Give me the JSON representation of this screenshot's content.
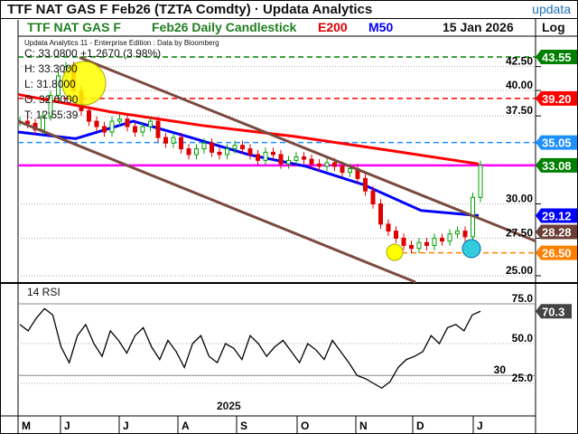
{
  "window": {
    "title": "TTF NAT GAS F     Feb26 (TZTA Comdty) · Updata Analytics",
    "brand": "updata"
  },
  "header": {
    "name": "TTF NAT GAS F",
    "desc": "Feb26 Daily Candlestick",
    "e200": "E200",
    "m50": "M50",
    "date": "15 Jan 2026",
    "scale": "Log"
  },
  "info": {
    "credit": "Updata Analytics 11 - Enterprise Edition : Data by Bloomberg",
    "c": "C: 33.0800  +1.2670 (3.98%)",
    "h": "H: 33.3000",
    "l": "L: 31.8000",
    "o": "O: 32.0000",
    "t": "T: 12:55:39"
  },
  "colors": {
    "up": "#00a000",
    "down": "#e00000",
    "e200": "#ff0000",
    "m50": "#0000ff",
    "channel": "#7b4a3f",
    "magenta": "#ff00ff"
  },
  "chart_data": [
    {
      "type": "candlestick",
      "title": "TTF NAT GAS F Feb26 Daily Candlestick",
      "scale": "log",
      "ylim": [
        24.5,
        45
      ],
      "yticks": [
        "25.00",
        "27.50",
        "30.00",
        "37.50",
        "40.00",
        "42.50"
      ],
      "xticks": [
        "M",
        "J",
        "J",
        "A",
        "S",
        "O",
        "N",
        "D",
        "J"
      ],
      "year_label": "2025",
      "closes": [
        37.0,
        36.8,
        36.2,
        37.5,
        39.5,
        41.5,
        42.5,
        40.0,
        38.0,
        37.0,
        36.5,
        36.0,
        37.0,
        37.2,
        36.5,
        36.0,
        36.5,
        37.0,
        35.5,
        35.0,
        35.5,
        34.5,
        34.0,
        34.5,
        35.0,
        34.2,
        34.0,
        34.5,
        34.8,
        34.5,
        34.0,
        33.5,
        34.2,
        34.0,
        33.2,
        33.5,
        33.8,
        33.6,
        33.2,
        33.0,
        33.3,
        33.0,
        32.5,
        32.8,
        32.0,
        31.0,
        30.0,
        28.5,
        28.0,
        27.5,
        27.0,
        26.8,
        27.2,
        27.0,
        27.5,
        27.3,
        27.8,
        28.0,
        27.6,
        30.5,
        33.08
      ],
      "e200": [
        39.6,
        37.9,
        36.6,
        35.6,
        34.4,
        33.2
      ],
      "m50": [
        36.0,
        35.4,
        37.0,
        35.5,
        34.0,
        33.0,
        31.5,
        29.5,
        29.12
      ],
      "levels": [
        {
          "label": "43.55",
          "value": 43.55,
          "color": "#008000"
        },
        {
          "label": "39.20",
          "value": 39.2,
          "color": "#ff0000"
        },
        {
          "label": "35.05",
          "value": 35.05,
          "color": "#1e90ff"
        },
        {
          "label": "33.08",
          "value": 33.08,
          "color": "#008000"
        },
        {
          "label": "29.12",
          "value": 29.12,
          "color": "#0000ff"
        },
        {
          "label": "28.28",
          "value": 28.28,
          "color": "#6b3f35"
        },
        {
          "label": "26.50",
          "value": 26.5,
          "color": "#ff8000"
        }
      ]
    },
    {
      "type": "line",
      "title": "14 RSI",
      "ylim": [
        15,
        85
      ],
      "yticks": [
        "75.0",
        "50.0",
        "30",
        "25.0"
      ],
      "last": "70.3",
      "values": [
        62,
        58,
        66,
        72,
        68,
        48,
        38,
        55,
        62,
        50,
        42,
        58,
        52,
        44,
        55,
        60,
        48,
        40,
        52,
        45,
        35,
        50,
        55,
        42,
        38,
        50,
        47,
        40,
        55,
        50,
        42,
        48,
        52,
        45,
        38,
        50,
        46,
        40,
        52,
        45,
        38,
        30,
        28,
        25,
        22,
        26,
        35,
        40,
        42,
        45,
        55,
        50,
        60,
        62,
        58,
        68,
        70.3
      ]
    }
  ]
}
